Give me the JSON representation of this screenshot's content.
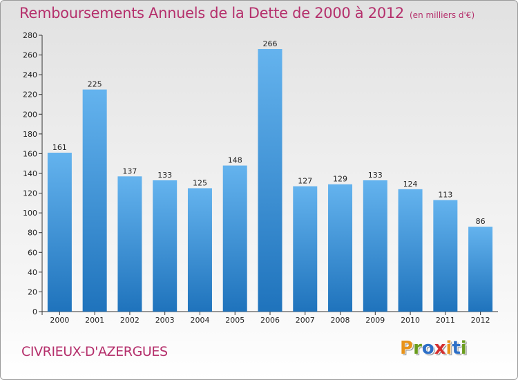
{
  "header": {
    "title": "Remboursements Annuels de la Dette de 2000 à 2012",
    "unit": "(en milliers d'€)"
  },
  "footer": {
    "city": "CIVRIEUX-D'AZERGUES",
    "logo": {
      "text": "Proxiti",
      "colors": [
        "#e8931a",
        "#6a9c1e",
        "#2d6fc7",
        "#d42f2f",
        "#e8931a",
        "#2d6fc7",
        "#6a9c1e"
      ]
    }
  },
  "colors": {
    "bar_top": "#64b3ee",
    "bar_bottom": "#1f73bc",
    "accent": "#b5306c"
  },
  "chart_data": {
    "type": "bar",
    "title": "Remboursements Annuels de la Dette de 2000 à 2012",
    "xlabel": "",
    "ylabel": "",
    "categories": [
      "2000",
      "2001",
      "2002",
      "2003",
      "2004",
      "2005",
      "2006",
      "2007",
      "2008",
      "2009",
      "2010",
      "2011",
      "2012"
    ],
    "values": [
      161,
      225,
      137,
      133,
      125,
      148,
      266,
      127,
      129,
      133,
      124,
      113,
      86
    ],
    "ylim": [
      0,
      280
    ],
    "yticks": [
      0,
      20,
      40,
      60,
      80,
      100,
      120,
      140,
      160,
      180,
      200,
      220,
      240,
      260,
      280
    ],
    "grid": false
  }
}
